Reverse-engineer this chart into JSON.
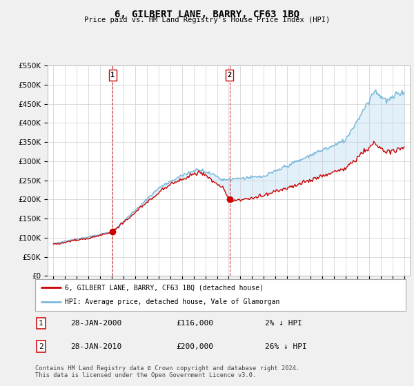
{
  "title": "6, GILBERT LANE, BARRY, CF63 1BQ",
  "subtitle": "Price paid vs. HM Land Registry's House Price Index (HPI)",
  "legend_line1": "6, GILBERT LANE, BARRY, CF63 1BQ (detached house)",
  "legend_line2": "HPI: Average price, detached house, Vale of Glamorgan",
  "transaction1_date": "28-JAN-2000",
  "transaction1_price": "£116,000",
  "transaction1_hpi": "2% ↓ HPI",
  "transaction1_year": 2000.07,
  "transaction1_value": 116000,
  "transaction2_date": "28-JAN-2010",
  "transaction2_price": "£200,000",
  "transaction2_hpi": "26% ↓ HPI",
  "transaction2_year": 2010.07,
  "transaction2_value": 200000,
  "footnote1": "Contains HM Land Registry data © Crown copyright and database right 2024.",
  "footnote2": "This data is licensed under the Open Government Licence v3.0.",
  "hpi_color": "#7ab8d9",
  "price_color": "#cc0000",
  "fill_color": "#d6eaf8",
  "marker_color": "#cc0000",
  "ylim": [
    0,
    550000
  ],
  "yticks": [
    0,
    50000,
    100000,
    150000,
    200000,
    250000,
    300000,
    350000,
    400000,
    450000,
    500000,
    550000
  ],
  "xlim_start": 1994.5,
  "xlim_end": 2025.5,
  "background_color": "#f0f0f0",
  "plot_background": "#ffffff",
  "grid_color": "#cccccc",
  "label_box_color": "#cc0000"
}
